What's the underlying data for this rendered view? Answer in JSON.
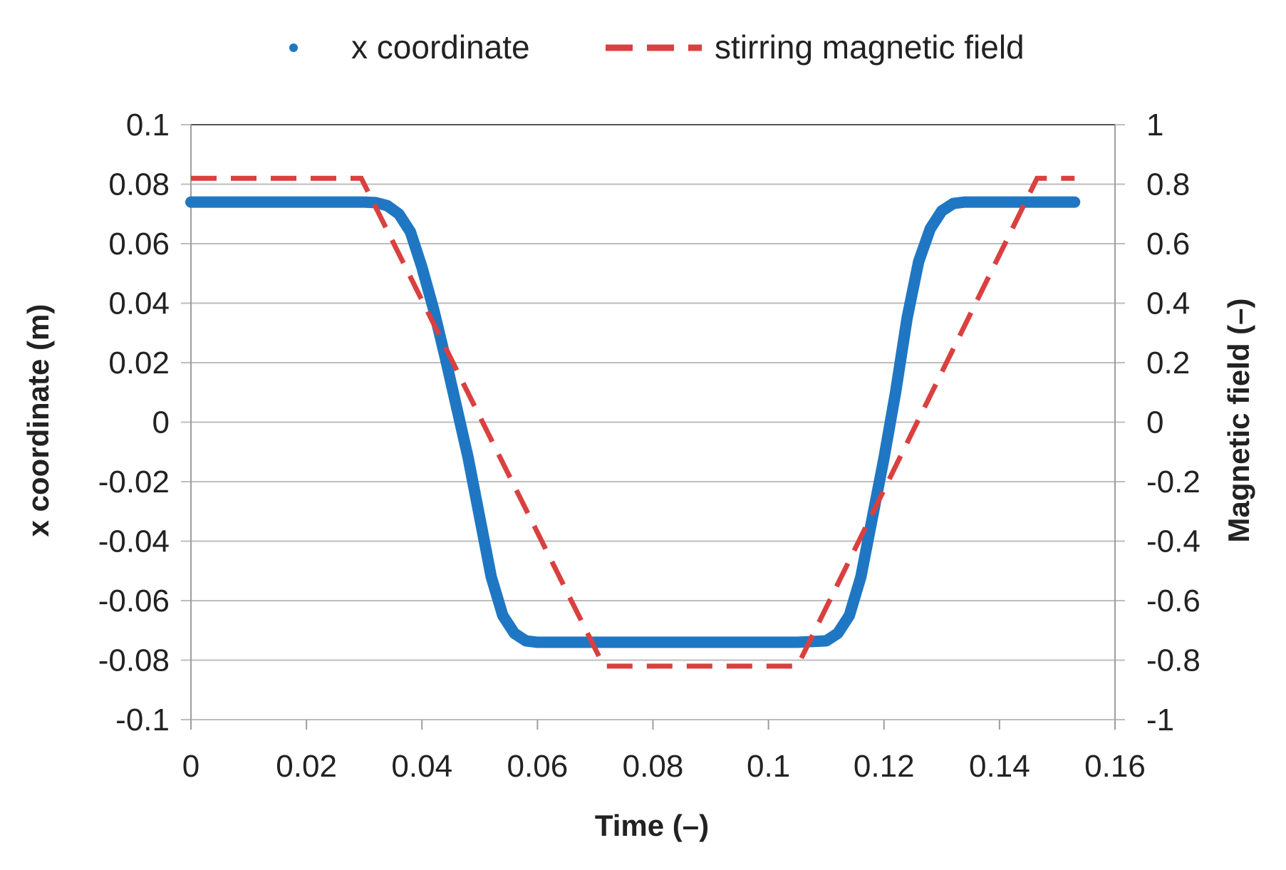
{
  "chart_data": {
    "type": "line",
    "xlabel": "Time (–)",
    "ylabel": "x coordinate (m)",
    "y2label": "Magnetic field (–)",
    "xlim": [
      0,
      0.16
    ],
    "ylim": [
      -0.1,
      0.1
    ],
    "y2lim": [
      -1,
      1
    ],
    "grid": true,
    "legend_position": "top",
    "x_ticks": [
      "0",
      "0.02",
      "0.04",
      "0.06",
      "0.08",
      "0.1",
      "0.12",
      "0.14",
      "0.16"
    ],
    "y_ticks": [
      "-0.1",
      "-0.08",
      "-0.06",
      "-0.04",
      "-0.02",
      "0",
      "0.02",
      "0.04",
      "0.06",
      "0.08",
      "0.1"
    ],
    "y2_ticks": [
      "-1",
      "-0.8",
      "-0.6",
      "-0.4",
      "-0.2",
      "0",
      "0.2",
      "0.4",
      "0.6",
      "0.8",
      "1"
    ],
    "series": [
      {
        "name": "x coordinate",
        "axis": "left",
        "style": "dots",
        "color": "#1f77c4",
        "x": [
          0,
          0.005,
          0.01,
          0.015,
          0.02,
          0.025,
          0.03,
          0.032,
          0.034,
          0.036,
          0.038,
          0.04,
          0.042,
          0.044,
          0.046,
          0.048,
          0.05,
          0.052,
          0.054,
          0.056,
          0.058,
          0.06,
          0.065,
          0.07,
          0.075,
          0.08,
          0.085,
          0.09,
          0.095,
          0.1,
          0.105,
          0.11,
          0.112,
          0.114,
          0.116,
          0.118,
          0.12,
          0.122,
          0.124,
          0.126,
          0.128,
          0.13,
          0.132,
          0.134,
          0.136,
          0.14,
          0.145,
          0.15,
          0.153
        ],
        "values": [
          0.074,
          0.074,
          0.074,
          0.074,
          0.074,
          0.074,
          0.074,
          0.0738,
          0.0728,
          0.07,
          0.064,
          0.052,
          0.038,
          0.022,
          0.005,
          -0.012,
          -0.032,
          -0.052,
          -0.065,
          -0.071,
          -0.0735,
          -0.074,
          -0.074,
          -0.074,
          -0.074,
          -0.074,
          -0.074,
          -0.074,
          -0.074,
          -0.074,
          -0.074,
          -0.0735,
          -0.071,
          -0.065,
          -0.052,
          -0.032,
          -0.012,
          0.01,
          0.035,
          0.054,
          0.065,
          0.071,
          0.0735,
          0.074,
          0.074,
          0.074,
          0.074,
          0.074,
          0.074
        ]
      },
      {
        "name": "stirring magnetic field",
        "axis": "right",
        "style": "dashed",
        "color": "#d9403f",
        "x": [
          0,
          0.0295,
          0.0715,
          0.105,
          0.1465,
          0.153
        ],
        "values": [
          0.82,
          0.82,
          -0.82,
          -0.82,
          0.82,
          0.82
        ]
      }
    ]
  }
}
